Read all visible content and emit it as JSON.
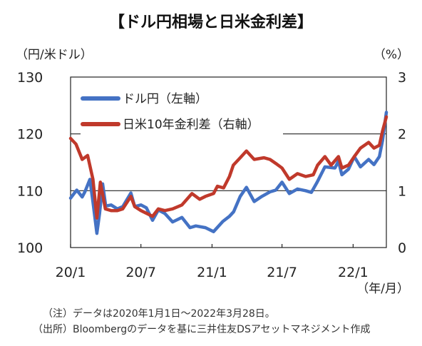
{
  "chart_data": {
    "type": "line",
    "title": "【ドル円相場と日米金利差】",
    "left_unit": "（円/米ドル）",
    "right_unit": "（%）",
    "x_unit": "（年/月）",
    "x_tick_labels": [
      "20/1",
      "20/7",
      "21/1",
      "21/7",
      "22/1"
    ],
    "x_tick_dates": [
      "2020-01-01",
      "2020-07-01",
      "2021-01-01",
      "2021-07-01",
      "2022-01-01"
    ],
    "x_range": [
      "2020-01-01",
      "2022-03-28"
    ],
    "left_axis": {
      "min": 100,
      "max": 130,
      "ticks": [
        "100",
        "110",
        "120",
        "130"
      ]
    },
    "right_axis": {
      "min": 0,
      "max": 3,
      "ticks": [
        "0",
        "1",
        "2",
        "3"
      ]
    },
    "gridlines_left": [
      110,
      120
    ],
    "legend_position": "top-left",
    "series": [
      {
        "name": "ドル円（左軸）",
        "color": "#4472c4",
        "axis": "left",
        "points": [
          [
            "2020-01-01",
            108.7
          ],
          [
            "2020-01-10",
            109.5
          ],
          [
            "2020-01-17",
            110.1
          ],
          [
            "2020-01-31",
            108.9
          ],
          [
            "2020-02-07",
            109.8
          ],
          [
            "2020-02-20",
            112.0
          ],
          [
            "2020-02-28",
            108.0
          ],
          [
            "2020-03-09",
            102.5
          ],
          [
            "2020-03-16",
            106.0
          ],
          [
            "2020-03-24",
            111.2
          ],
          [
            "2020-04-01",
            107.3
          ],
          [
            "2020-04-15",
            107.5
          ],
          [
            "2020-05-01",
            106.8
          ],
          [
            "2020-05-15",
            107.2
          ],
          [
            "2020-06-05",
            109.6
          ],
          [
            "2020-06-15",
            107.2
          ],
          [
            "2020-07-01",
            107.5
          ],
          [
            "2020-07-15",
            107.0
          ],
          [
            "2020-07-31",
            104.8
          ],
          [
            "2020-08-15",
            106.6
          ],
          [
            "2020-09-01",
            106.0
          ],
          [
            "2020-09-21",
            104.5
          ],
          [
            "2020-10-15",
            105.3
          ],
          [
            "2020-11-05",
            103.5
          ],
          [
            "2020-11-20",
            103.8
          ],
          [
            "2020-12-15",
            103.5
          ],
          [
            "2021-01-05",
            102.8
          ],
          [
            "2021-01-29",
            104.6
          ],
          [
            "2021-02-15",
            105.5
          ],
          [
            "2021-02-26",
            106.3
          ],
          [
            "2021-03-15",
            109.0
          ],
          [
            "2021-03-31",
            110.6
          ],
          [
            "2021-04-20",
            108.1
          ],
          [
            "2021-05-10",
            109.0
          ],
          [
            "2021-05-31",
            109.8
          ],
          [
            "2021-06-15",
            110.1
          ],
          [
            "2021-07-01",
            111.5
          ],
          [
            "2021-07-20",
            109.5
          ],
          [
            "2021-08-10",
            110.3
          ],
          [
            "2021-08-31",
            110.0
          ],
          [
            "2021-09-15",
            109.7
          ],
          [
            "2021-09-30",
            111.5
          ],
          [
            "2021-10-20",
            114.2
          ],
          [
            "2021-11-15",
            114.0
          ],
          [
            "2021-11-24",
            115.2
          ],
          [
            "2021-12-03",
            112.8
          ],
          [
            "2021-12-20",
            113.8
          ],
          [
            "2022-01-04",
            116.0
          ],
          [
            "2022-01-20",
            114.2
          ],
          [
            "2022-02-10",
            115.5
          ],
          [
            "2022-02-24",
            114.6
          ],
          [
            "2022-03-10",
            116.0
          ],
          [
            "2022-03-18",
            118.8
          ],
          [
            "2022-03-28",
            123.8
          ]
        ]
      },
      {
        "name": "日米10年金利差（右軸）",
        "color": "#c0392b",
        "axis": "right",
        "points": [
          [
            "2020-01-01",
            1.92
          ],
          [
            "2020-01-15",
            1.82
          ],
          [
            "2020-01-31",
            1.55
          ],
          [
            "2020-02-14",
            1.62
          ],
          [
            "2020-02-28",
            1.2
          ],
          [
            "2020-03-09",
            0.52
          ],
          [
            "2020-03-18",
            1.15
          ],
          [
            "2020-03-31",
            0.68
          ],
          [
            "2020-04-15",
            0.65
          ],
          [
            "2020-05-01",
            0.65
          ],
          [
            "2020-05-15",
            0.68
          ],
          [
            "2020-06-05",
            0.9
          ],
          [
            "2020-06-15",
            0.72
          ],
          [
            "2020-07-01",
            0.65
          ],
          [
            "2020-07-31",
            0.55
          ],
          [
            "2020-08-15",
            0.68
          ],
          [
            "2020-09-01",
            0.65
          ],
          [
            "2020-09-21",
            0.68
          ],
          [
            "2020-10-15",
            0.75
          ],
          [
            "2020-11-10",
            0.95
          ],
          [
            "2020-11-30",
            0.85
          ],
          [
            "2020-12-15",
            0.9
          ],
          [
            "2021-01-05",
            0.95
          ],
          [
            "2021-01-15",
            1.08
          ],
          [
            "2021-01-31",
            1.05
          ],
          [
            "2021-02-15",
            1.25
          ],
          [
            "2021-02-25",
            1.45
          ],
          [
            "2021-03-15",
            1.58
          ],
          [
            "2021-03-31",
            1.7
          ],
          [
            "2021-04-20",
            1.55
          ],
          [
            "2021-05-15",
            1.58
          ],
          [
            "2021-05-31",
            1.55
          ],
          [
            "2021-06-15",
            1.48
          ],
          [
            "2021-07-01",
            1.4
          ],
          [
            "2021-07-20",
            1.2
          ],
          [
            "2021-08-10",
            1.3
          ],
          [
            "2021-08-31",
            1.25
          ],
          [
            "2021-09-20",
            1.28
          ],
          [
            "2021-10-01",
            1.45
          ],
          [
            "2021-10-20",
            1.6
          ],
          [
            "2021-11-05",
            1.45
          ],
          [
            "2021-11-24",
            1.6
          ],
          [
            "2021-12-03",
            1.4
          ],
          [
            "2021-12-20",
            1.45
          ],
          [
            "2022-01-04",
            1.6
          ],
          [
            "2022-01-20",
            1.75
          ],
          [
            "2022-02-10",
            1.85
          ],
          [
            "2022-02-24",
            1.75
          ],
          [
            "2022-03-10",
            1.8
          ],
          [
            "2022-03-18",
            2.05
          ],
          [
            "2022-03-28",
            2.3
          ]
        ]
      }
    ],
    "notes": [
      "（注）データは2020年1月1日～2022年3月28日。",
      "（出所）Bloombergのデータを基に三井住友DSアセットマネジメント作成"
    ]
  }
}
